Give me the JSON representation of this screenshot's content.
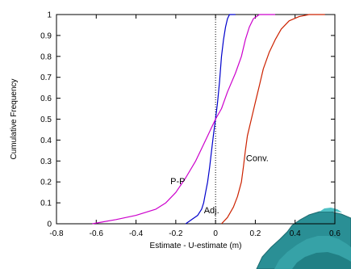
{
  "chart_data": {
    "type": "line",
    "title": "",
    "xlabel": "Estimate - U-estimate (m)",
    "ylabel": "Cumulative Frequency",
    "xlim": [
      -0.8,
      0.6
    ],
    "ylim": [
      0,
      1
    ],
    "xticks": [
      -0.8,
      -0.6,
      -0.4,
      -0.2,
      0,
      0.2,
      0.4,
      0.6
    ],
    "xtick_labels": [
      "-0.8",
      "-0.6",
      "-0.4",
      "-0.2",
      "0",
      "0.2",
      "0.4",
      "0.6"
    ],
    "yticks": [
      0,
      0.1,
      0.2,
      0.3,
      0.4,
      0.5,
      0.6,
      0.7,
      0.8,
      0.9,
      1
    ],
    "ytick_labels": [
      "0",
      "0.1",
      "0.2",
      "0.3",
      "0.4",
      "0.5",
      "0.6",
      "0.7",
      "0.8",
      "0.9",
      "1"
    ],
    "reference_line_x": 0,
    "grid": false,
    "series": [
      {
        "name": "Adj.",
        "color": "#0000cc",
        "points": [
          [
            -0.15,
            0.0
          ],
          [
            -0.12,
            0.02
          ],
          [
            -0.09,
            0.04
          ],
          [
            -0.07,
            0.07
          ],
          [
            -0.06,
            0.1
          ],
          [
            -0.05,
            0.15
          ],
          [
            -0.04,
            0.2
          ],
          [
            -0.03,
            0.27
          ],
          [
            -0.02,
            0.35
          ],
          [
            -0.01,
            0.43
          ],
          [
            0.0,
            0.5
          ],
          [
            0.01,
            0.58
          ],
          [
            0.02,
            0.68
          ],
          [
            0.03,
            0.8
          ],
          [
            0.04,
            0.88
          ],
          [
            0.05,
            0.94
          ],
          [
            0.06,
            0.98
          ],
          [
            0.07,
            1.0
          ],
          [
            0.1,
            1.0
          ]
        ]
      },
      {
        "name": "P-P",
        "color": "#cc00cc",
        "points": [
          [
            -0.62,
            0.0
          ],
          [
            -0.5,
            0.02
          ],
          [
            -0.4,
            0.04
          ],
          [
            -0.3,
            0.07
          ],
          [
            -0.25,
            0.1
          ],
          [
            -0.2,
            0.15
          ],
          [
            -0.15,
            0.22
          ],
          [
            -0.1,
            0.3
          ],
          [
            -0.06,
            0.38
          ],
          [
            -0.02,
            0.46
          ],
          [
            0.0,
            0.5
          ],
          [
            0.03,
            0.55
          ],
          [
            0.06,
            0.63
          ],
          [
            0.1,
            0.72
          ],
          [
            0.13,
            0.8
          ],
          [
            0.15,
            0.88
          ],
          [
            0.17,
            0.94
          ],
          [
            0.19,
            0.98
          ],
          [
            0.22,
            1.0
          ],
          [
            0.3,
            1.0
          ]
        ]
      },
      {
        "name": "Conv.",
        "color": "#cc2200",
        "points": [
          [
            0.03,
            0.0
          ],
          [
            0.06,
            0.03
          ],
          [
            0.09,
            0.08
          ],
          [
            0.11,
            0.13
          ],
          [
            0.13,
            0.2
          ],
          [
            0.14,
            0.27
          ],
          [
            0.15,
            0.35
          ],
          [
            0.16,
            0.42
          ],
          [
            0.18,
            0.5
          ],
          [
            0.2,
            0.58
          ],
          [
            0.22,
            0.66
          ],
          [
            0.24,
            0.74
          ],
          [
            0.27,
            0.82
          ],
          [
            0.3,
            0.88
          ],
          [
            0.33,
            0.93
          ],
          [
            0.37,
            0.97
          ],
          [
            0.42,
            0.99
          ],
          [
            0.47,
            1.0
          ],
          [
            0.55,
            1.0
          ]
        ]
      }
    ],
    "annotations": [
      {
        "text": "P-P",
        "x": -0.19,
        "y": 0.19
      },
      {
        "text": "Adj.",
        "x": -0.02,
        "y": 0.05
      },
      {
        "text": "Conv.",
        "x": 0.21,
        "y": 0.3
      }
    ]
  }
}
